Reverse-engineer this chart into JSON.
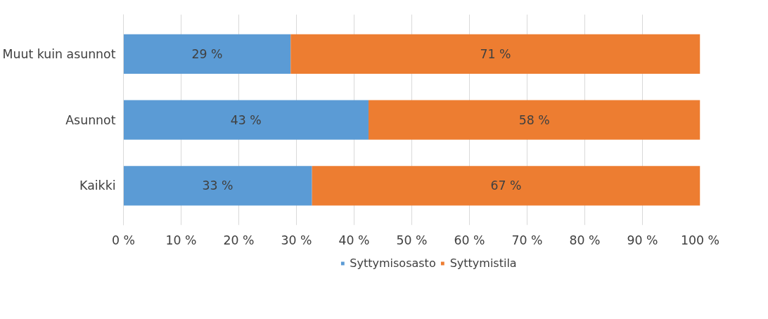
{
  "chart_data": {
    "type": "bar",
    "orientation": "horizontal",
    "stacked": true,
    "categories": [
      "Muut kuin asunnot",
      "Asunnot",
      "Kaikki"
    ],
    "series": [
      {
        "name": "Syttymisosasto",
        "color": "#5b9bd5",
        "values": [
          29,
          42.5,
          32.7
        ],
        "value_labels": [
          "29 %",
          "43 %",
          "33 %"
        ]
      },
      {
        "name": "Syttymistila",
        "color": "#ed7d31",
        "values": [
          71,
          57.5,
          67.3
        ],
        "value_labels": [
          "71 %",
          "58 %",
          "67 %"
        ]
      }
    ],
    "xlim": [
      0,
      100
    ],
    "xticks": [
      {
        "value": 0,
        "label": "0 %"
      },
      {
        "value": 10,
        "label": "10 %"
      },
      {
        "value": 20,
        "label": "20 %"
      },
      {
        "value": 30,
        "label": "30 %"
      },
      {
        "value": 40,
        "label": "40 %"
      },
      {
        "value": 50,
        "label": "50 %"
      },
      {
        "value": 60,
        "label": "60 %"
      },
      {
        "value": 70,
        "label": "70 %"
      },
      {
        "value": 80,
        "label": "80 %"
      },
      {
        "value": 90,
        "label": "90 %"
      },
      {
        "value": 100,
        "label": "100 %"
      }
    ],
    "grid": "x",
    "legend": "bottom"
  }
}
